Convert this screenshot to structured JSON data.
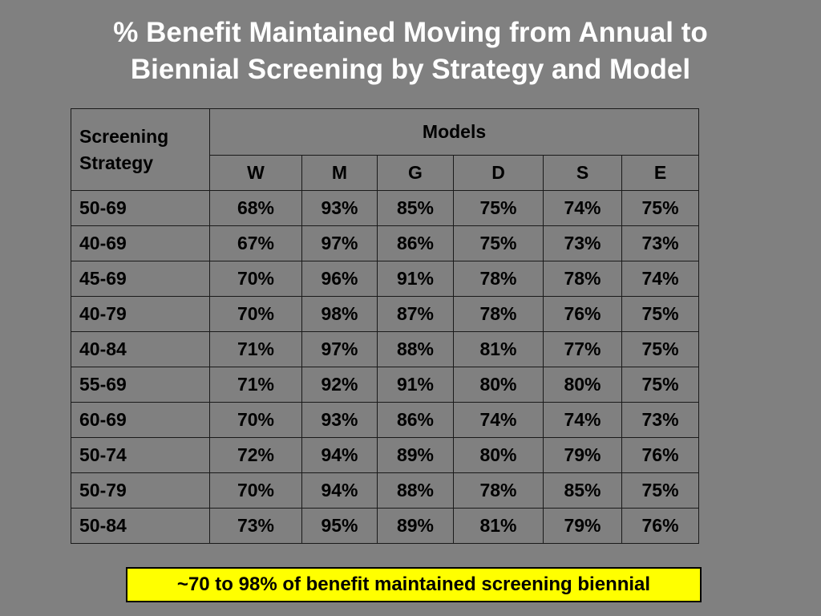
{
  "title": {
    "line1": "% Benefit Maintained Moving from Annual to",
    "line2": "Biennial Screening by Strategy and Model"
  },
  "table": {
    "corner_line1": "Screening",
    "corner_line2": "Strategy",
    "group_header": "Models",
    "models": [
      "W",
      "M",
      "G",
      "D",
      "S",
      "E"
    ],
    "rows": [
      {
        "strategy": "50-69",
        "values": [
          "68%",
          "93%",
          "85%",
          "75%",
          "74%",
          "75%"
        ]
      },
      {
        "strategy": "40-69",
        "values": [
          "67%",
          "97%",
          "86%",
          "75%",
          "73%",
          "73%"
        ]
      },
      {
        "strategy": "45-69",
        "values": [
          "70%",
          "96%",
          "91%",
          "78%",
          "78%",
          "74%"
        ]
      },
      {
        "strategy": "40-79",
        "values": [
          "70%",
          "98%",
          "87%",
          "78%",
          "76%",
          "75%"
        ]
      },
      {
        "strategy": "40-84",
        "values": [
          "71%",
          "97%",
          "88%",
          "81%",
          "77%",
          "75%"
        ]
      },
      {
        "strategy": "55-69",
        "values": [
          "71%",
          "92%",
          "91%",
          "80%",
          "80%",
          "75%"
        ]
      },
      {
        "strategy": "60-69",
        "values": [
          "70%",
          "93%",
          "86%",
          "74%",
          "74%",
          "73%"
        ]
      },
      {
        "strategy": "50-74",
        "values": [
          "72%",
          "94%",
          "89%",
          "80%",
          "79%",
          "76%"
        ]
      },
      {
        "strategy": "50-79",
        "values": [
          "70%",
          "94%",
          "88%",
          "78%",
          "85%",
          "75%"
        ]
      },
      {
        "strategy": "50-84",
        "values": [
          "73%",
          "95%",
          "89%",
          "81%",
          "79%",
          "76%"
        ]
      }
    ]
  },
  "note": {
    "text": "~70 to 98% of benefit maintained screening biennial"
  },
  "colors": {
    "background": "#808080",
    "title_text": "#ffffff",
    "note_background": "#ffff00"
  }
}
